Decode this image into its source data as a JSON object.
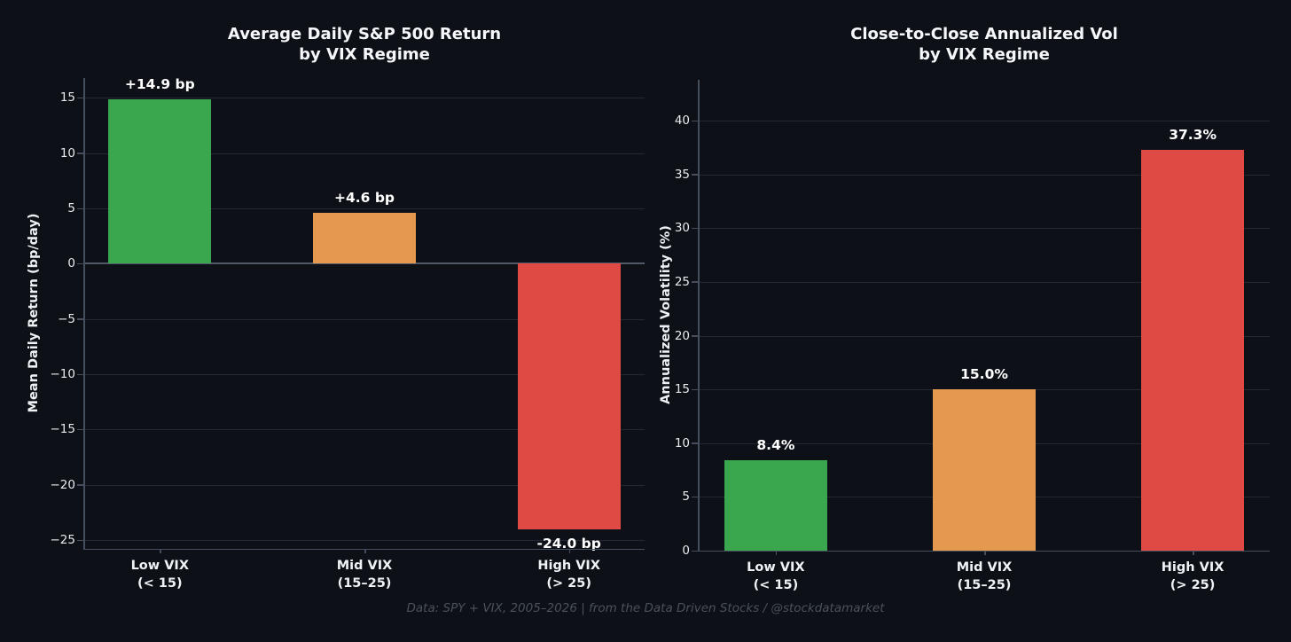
{
  "figure": {
    "background": "#0d1117",
    "footer": "Data: SPY + VIX, 2005–2026 | from the Data Driven Stocks / @stockdatamarket"
  },
  "chart_data": [
    {
      "type": "bar",
      "title": "Average Daily S&P 500 Return by VIX Regime",
      "title_lines": [
        "Average Daily S&P 500 Return",
        "by VIX Regime"
      ],
      "categories": [
        "Low VIX (< 15)",
        "Mid VIX (15–25)",
        "High VIX (> 25)"
      ],
      "category_lines": [
        [
          "Low VIX",
          "(< 15)"
        ],
        [
          "Mid VIX",
          "(15–25)"
        ],
        [
          "High VIX",
          "(> 25)"
        ]
      ],
      "values": [
        14.9,
        4.6,
        -24.0
      ],
      "value_labels": [
        "+14.9 bp",
        "+4.6 bp",
        "-24.0 bp"
      ],
      "xlabel": "",
      "ylabel": "Mean Daily Return (bp/day)",
      "yticks": [
        15,
        10,
        5,
        0,
        -5,
        -10,
        -15,
        -20,
        -25
      ],
      "ylim": [
        -25.8,
        16.8
      ],
      "zero_line": true,
      "grid": true,
      "legend": "none",
      "bar_colors": [
        "#3aa64e",
        "#e5994f",
        "#e04a44"
      ]
    },
    {
      "type": "bar",
      "title": "Close-to-Close Annualized Vol by VIX Regime",
      "title_lines": [
        "Close-to-Close Annualized Vol",
        "by VIX Regime"
      ],
      "categories": [
        "Low VIX (< 15)",
        "Mid VIX (15–25)",
        "High VIX (> 25)"
      ],
      "category_lines": [
        [
          "Low VIX",
          "(< 15)"
        ],
        [
          "Mid VIX",
          "(15–25)"
        ],
        [
          "High VIX",
          "(> 25)"
        ]
      ],
      "values": [
        8.4,
        15.0,
        37.3
      ],
      "value_labels": [
        "8.4%",
        "15.0%",
        "37.3%"
      ],
      "xlabel": "",
      "ylabel": "Annualized Volatility (%)",
      "yticks": [
        0,
        5,
        10,
        15,
        20,
        25,
        30,
        35,
        40
      ],
      "ylim": [
        0,
        43.8
      ],
      "zero_line": false,
      "grid": true,
      "legend": "none",
      "bar_colors": [
        "#3aa64e",
        "#e5994f",
        "#e04a44"
      ]
    }
  ]
}
